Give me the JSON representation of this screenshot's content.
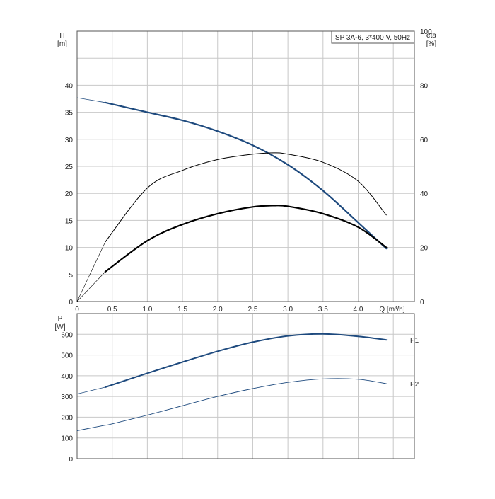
{
  "chart_data": [
    {
      "type": "line",
      "legend_box": "SP 3A-6, 3*400 V, 50Hz",
      "y_unit_label": [
        "H",
        "[m]"
      ],
      "y2_unit_label": [
        "eta",
        "[%]"
      ],
      "x_unit_label": "Q [m³/h]",
      "xlim": [
        0,
        4.8
      ],
      "ylim": [
        0,
        50
      ],
      "y2lim": [
        0,
        100
      ],
      "grid": true,
      "x_ticks": [
        {
          "v": 0,
          "t": "0"
        },
        {
          "v": 0.5,
          "t": "0.5"
        },
        {
          "v": 1.0,
          "t": "1.0"
        },
        {
          "v": 1.5,
          "t": "1.5"
        },
        {
          "v": 2.0,
          "t": "2.0"
        },
        {
          "v": 2.5,
          "t": "2.5"
        },
        {
          "v": 3.0,
          "t": "3.0"
        },
        {
          "v": 3.5,
          "t": "3.5"
        },
        {
          "v": 4.0,
          "t": "4.0"
        }
      ],
      "y_ticks": [
        {
          "v": 0,
          "t": "0"
        },
        {
          "v": 5,
          "t": "5"
        },
        {
          "v": 10,
          "t": "10"
        },
        {
          "v": 15,
          "t": "15"
        },
        {
          "v": 20,
          "t": "20"
        },
        {
          "v": 25,
          "t": "25"
        },
        {
          "v": 30,
          "t": "30"
        },
        {
          "v": 35,
          "t": "35"
        },
        {
          "v": 40,
          "t": "40"
        }
      ],
      "y2_ticks": [
        {
          "v": 0,
          "t": "0"
        },
        {
          "v": 20,
          "t": "20"
        },
        {
          "v": 40,
          "t": "40"
        },
        {
          "v": 60,
          "t": "60"
        },
        {
          "v": 80,
          "t": "80"
        },
        {
          "v": 100,
          "t": "100"
        }
      ],
      "series": [
        {
          "id": "head",
          "axis": "y",
          "color": "#1e4a7e",
          "width": 2.2,
          "thin_width": 0.8,
          "op_start": 0.4,
          "x": [
            0,
            0.4,
            1.0,
            1.5,
            2.0,
            2.5,
            3.0,
            3.5,
            4.0,
            4.4
          ],
          "y": [
            37.7,
            36.8,
            35.0,
            33.5,
            31.5,
            28.9,
            25.3,
            20.5,
            14.6,
            9.8
          ]
        },
        {
          "id": "eta_total",
          "axis": "y2",
          "color": "#000000",
          "width": 1.0,
          "thin_width": 0.6,
          "op_start": 0.4,
          "x": [
            0,
            0.4,
            1.0,
            1.5,
            2.0,
            2.5,
            2.8,
            3.0,
            3.5,
            4.0,
            4.4
          ],
          "y": [
            0,
            22,
            42,
            48.5,
            52.5,
            54.5,
            55,
            54.5,
            51.5,
            44.5,
            32
          ]
        },
        {
          "id": "eta_pump",
          "axis": "y2",
          "color": "#000000",
          "width": 2.2,
          "thin_width": 0.6,
          "op_start": 0.4,
          "x": [
            0,
            0.4,
            1.0,
            1.5,
            2.0,
            2.5,
            2.8,
            3.0,
            3.5,
            4.0,
            4.4
          ],
          "y": [
            0,
            11,
            22.5,
            28.5,
            32.5,
            35,
            35.5,
            35.2,
            32.5,
            27.5,
            20
          ]
        }
      ]
    },
    {
      "type": "line",
      "y_unit_label": [
        "P",
        "[W]"
      ],
      "xlim": [
        0,
        4.8
      ],
      "ylim": [
        0,
        700
      ],
      "grid": true,
      "y_ticks": [
        {
          "v": 0,
          "t": "0"
        },
        {
          "v": 100,
          "t": "100"
        },
        {
          "v": 200,
          "t": "200"
        },
        {
          "v": 300,
          "t": "300"
        },
        {
          "v": 400,
          "t": "400"
        },
        {
          "v": 500,
          "t": "500"
        },
        {
          "v": 600,
          "t": "600"
        }
      ],
      "series": [
        {
          "id": "P1",
          "name": "P1",
          "color": "#1e4a7e",
          "width": 2.0,
          "thin_width": 0.8,
          "op_start": 0.4,
          "x": [
            0,
            0.4,
            1.0,
            1.5,
            2.0,
            2.5,
            3.0,
            3.5,
            4.0,
            4.4
          ],
          "y": [
            312,
            345,
            412,
            466,
            518,
            562,
            592,
            602,
            590,
            573
          ]
        },
        {
          "id": "P2",
          "name": "P2",
          "color": "#1e4a7e",
          "width": 0.9,
          "thin_width": 0.9,
          "op_start": 0.4,
          "x": [
            0,
            0.5,
            1.0,
            1.5,
            2.0,
            2.5,
            3.0,
            3.5,
            4.0,
            4.4
          ],
          "y": [
            135,
            168,
            210,
            255,
            300,
            338,
            368,
            385,
            383,
            362
          ]
        }
      ]
    }
  ]
}
